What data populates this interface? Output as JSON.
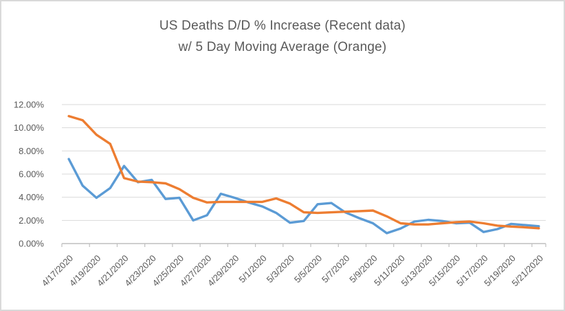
{
  "title": {
    "line1": "US Deaths D/D % Increase (Recent data)",
    "line2": "w/ 5 Day Moving Average (Orange)"
  },
  "colors": {
    "daily": "#5B9BD5",
    "moving_avg": "#ED7D31",
    "gridline": "#D9D9D9",
    "axis": "#BFBFBF",
    "text": "#595959",
    "border": "#D9D9D9",
    "background": "#FFFFFF"
  },
  "chart_data": {
    "type": "line",
    "title": "US Deaths D/D % Increase (Recent data) w/ 5 Day Moving Average (Orange)",
    "x": [
      "4/17/2020",
      "4/18/2020",
      "4/19/2020",
      "4/20/2020",
      "4/21/2020",
      "4/22/2020",
      "4/23/2020",
      "4/24/2020",
      "4/25/2020",
      "4/26/2020",
      "4/27/2020",
      "4/28/2020",
      "4/29/2020",
      "4/30/2020",
      "5/1/2020",
      "5/2/2020",
      "5/3/2020",
      "5/4/2020",
      "5/5/2020",
      "5/6/2020",
      "5/7/2020",
      "5/8/2020",
      "5/9/2020",
      "5/10/2020",
      "5/11/2020",
      "5/12/2020",
      "5/13/2020",
      "5/14/2020",
      "5/15/2020",
      "5/16/2020",
      "5/17/2020",
      "5/18/2020",
      "5/19/2020",
      "5/20/2020",
      "5/21/2020"
    ],
    "series": [
      {
        "name": "US Deaths D/D % Increase (daily)",
        "color_key": "daily",
        "values": [
          7.3,
          5.0,
          3.95,
          4.8,
          6.7,
          5.3,
          5.5,
          3.85,
          3.95,
          2.0,
          2.45,
          4.3,
          3.95,
          3.55,
          3.2,
          2.65,
          1.8,
          1.95,
          3.4,
          3.5,
          2.7,
          2.2,
          1.75,
          0.9,
          1.3,
          1.9,
          2.05,
          1.95,
          1.75,
          1.8,
          1.0,
          1.25,
          1.7,
          1.6,
          1.5
        ]
      },
      {
        "name": "5 Day Moving Average",
        "color_key": "moving_avg",
        "values": [
          11.0,
          10.65,
          9.4,
          8.6,
          5.65,
          5.35,
          5.3,
          5.2,
          4.7,
          3.95,
          3.55,
          3.6,
          3.6,
          3.6,
          3.6,
          3.9,
          3.45,
          2.7,
          2.65,
          2.7,
          2.75,
          2.8,
          2.85,
          2.35,
          1.75,
          1.65,
          1.65,
          1.75,
          1.85,
          1.9,
          1.75,
          1.55,
          1.47,
          1.4,
          1.32
        ]
      }
    ],
    "x_tick_labels": [
      "4/17/2020",
      "4/19/2020",
      "4/21/2020",
      "4/23/2020",
      "4/25/2020",
      "4/27/2020",
      "4/29/2020",
      "5/1/2020",
      "5/3/2020",
      "5/5/2020",
      "5/7/2020",
      "5/9/2020",
      "5/11/2020",
      "5/13/2020",
      "5/15/2020",
      "5/17/2020",
      "5/19/2020",
      "5/21/2020"
    ],
    "y_tick_labels": [
      "0.00%",
      "2.00%",
      "4.00%",
      "6.00%",
      "8.00%",
      "10.00%",
      "12.00%"
    ],
    "ylim": [
      0,
      12
    ],
    "y_step": 2,
    "grid": true,
    "legend_position": "none"
  }
}
